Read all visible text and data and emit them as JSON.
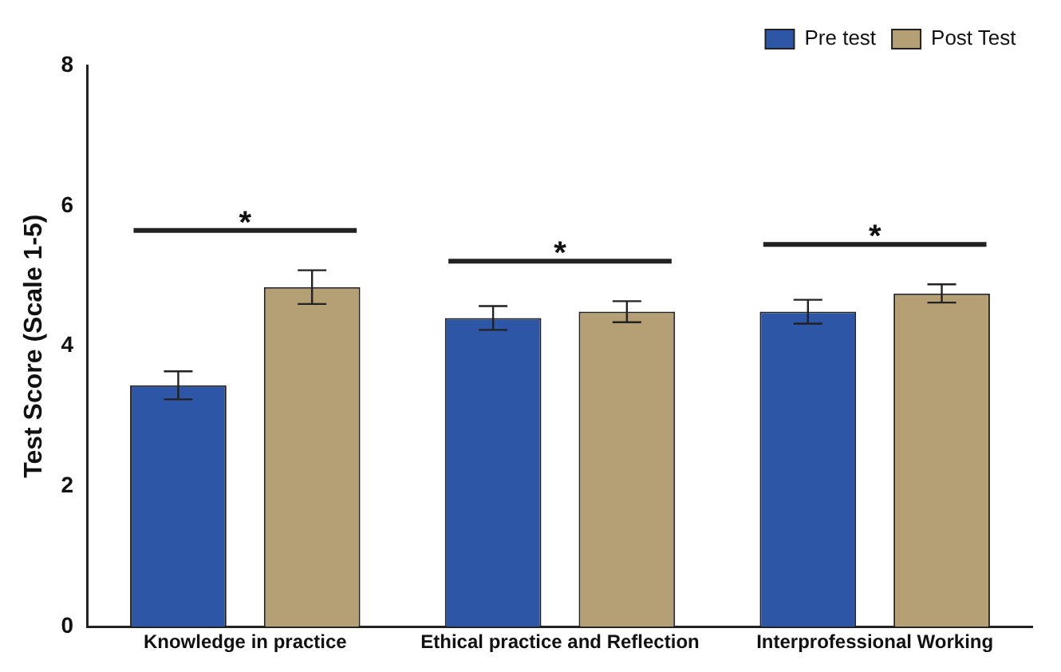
{
  "chart_data": {
    "type": "bar",
    "ylabel": "Test Score (Scale 1-5)",
    "categories": [
      "Knowledge in practice",
      "Ethical practice and Reflection",
      "Interprofessional Working"
    ],
    "series": [
      {
        "name": "Pre test",
        "color": "#2e56a6",
        "values": [
          3.44,
          4.4,
          4.49
        ],
        "errors": [
          0.2,
          0.17,
          0.17
        ]
      },
      {
        "name": "Post Test",
        "color": "#b59f74",
        "values": [
          4.84,
          4.49,
          4.75
        ],
        "errors": [
          0.24,
          0.15,
          0.13
        ]
      }
    ],
    "ylim": [
      0,
      8
    ],
    "yticks": [
      0,
      2,
      4,
      6,
      8
    ],
    "grid": false,
    "legend": "top right",
    "annotations": [
      "*",
      "*",
      "*"
    ]
  }
}
